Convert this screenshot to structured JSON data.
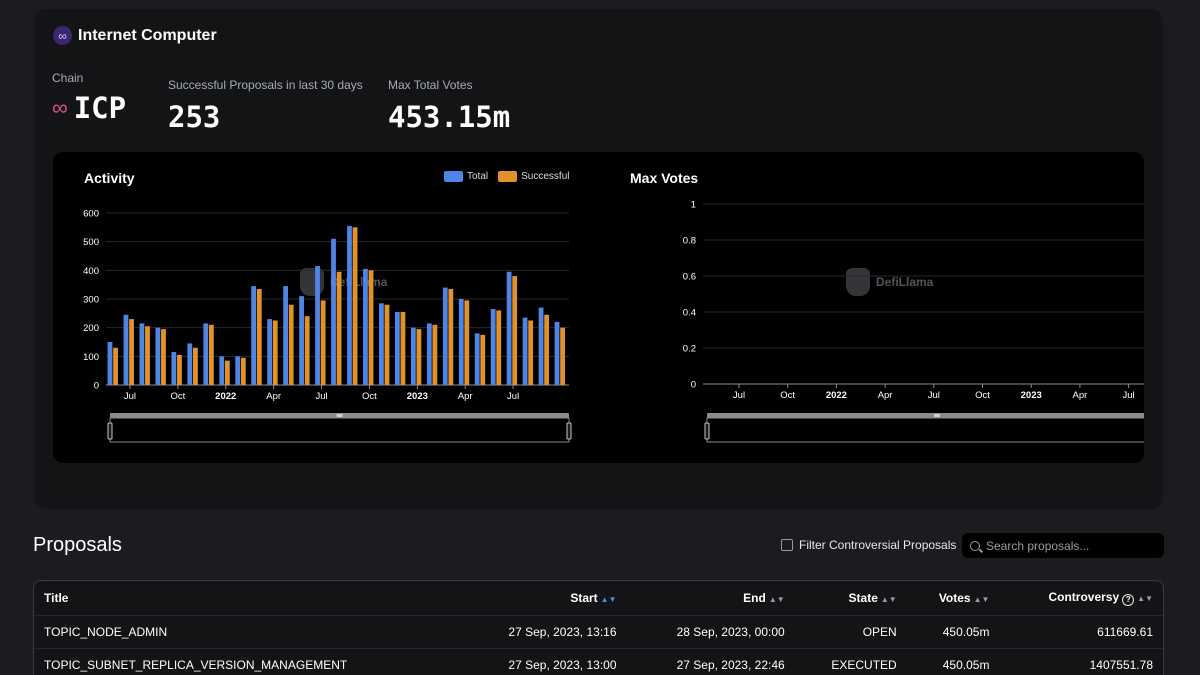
{
  "chain": {
    "name": "Internet Computer",
    "logo_icon": "infinity-icon",
    "chain_label": "Chain",
    "chain_symbol": "ICP",
    "proposals_label": "Successful Proposals in last 30 days",
    "proposals_value": "253",
    "votes_label": "Max Total Votes",
    "votes_value": "453.15m"
  },
  "colors": {
    "total": "#4f86e6",
    "successful": "#e3912b",
    "background": "#1b1c1f",
    "card": "#131416"
  },
  "watermark": "DefiLlama",
  "chart_data": [
    {
      "type": "bar",
      "title": "Activity",
      "legend_position": "top-right",
      "x_tick_labels": [
        "Jul",
        "Oct",
        "2022",
        "Apr",
        "Jul",
        "Oct",
        "2023",
        "Apr",
        "Jul"
      ],
      "y_ticks": [
        "0",
        "100",
        "200",
        "300",
        "400",
        "500",
        "600"
      ],
      "ylim": [
        0,
        600
      ],
      "grid": true,
      "series": [
        {
          "name": "Total",
          "values": [
            150,
            245,
            215,
            200,
            115,
            145,
            215,
            100,
            100,
            345,
            230,
            345,
            310,
            415,
            510,
            555,
            405,
            285,
            255,
            200,
            215,
            340,
            300,
            180,
            265,
            395,
            235,
            270,
            220
          ]
        },
        {
          "name": "Successful",
          "values": [
            130,
            230,
            205,
            195,
            105,
            130,
            210,
            85,
            95,
            335,
            225,
            280,
            240,
            295,
            395,
            550,
            400,
            280,
            255,
            195,
            210,
            335,
            295,
            175,
            260,
            380,
            225,
            245,
            200
          ]
        }
      ]
    },
    {
      "type": "line",
      "title": "Max Votes",
      "x_tick_labels": [
        "Jul",
        "Oct",
        "2022",
        "Apr",
        "Jul",
        "Oct",
        "2023",
        "Apr",
        "Jul"
      ],
      "y_ticks": [
        "0",
        "0.2",
        "0.4",
        "0.6",
        "0.8",
        "1"
      ],
      "ylim": [
        0,
        1
      ],
      "grid": true,
      "series": []
    }
  ],
  "proposals": {
    "heading": "Proposals",
    "filter_label": "Filter Controversial Proposals",
    "search_placeholder": "Search proposals...",
    "columns": [
      "Title",
      "Start",
      "End",
      "State",
      "Votes",
      "Controversy"
    ],
    "rows": [
      [
        "TOPIC_NODE_ADMIN",
        "27 Sep, 2023, 13:16",
        "28 Sep, 2023, 00:00",
        "OPEN",
        "450.05m",
        "611669.61"
      ],
      [
        "TOPIC_SUBNET_REPLICA_VERSION_MANAGEMENT",
        "27 Sep, 2023, 13:00",
        "27 Sep, 2023, 22:46",
        "EXECUTED",
        "450.05m",
        "1407551.78"
      ]
    ]
  }
}
